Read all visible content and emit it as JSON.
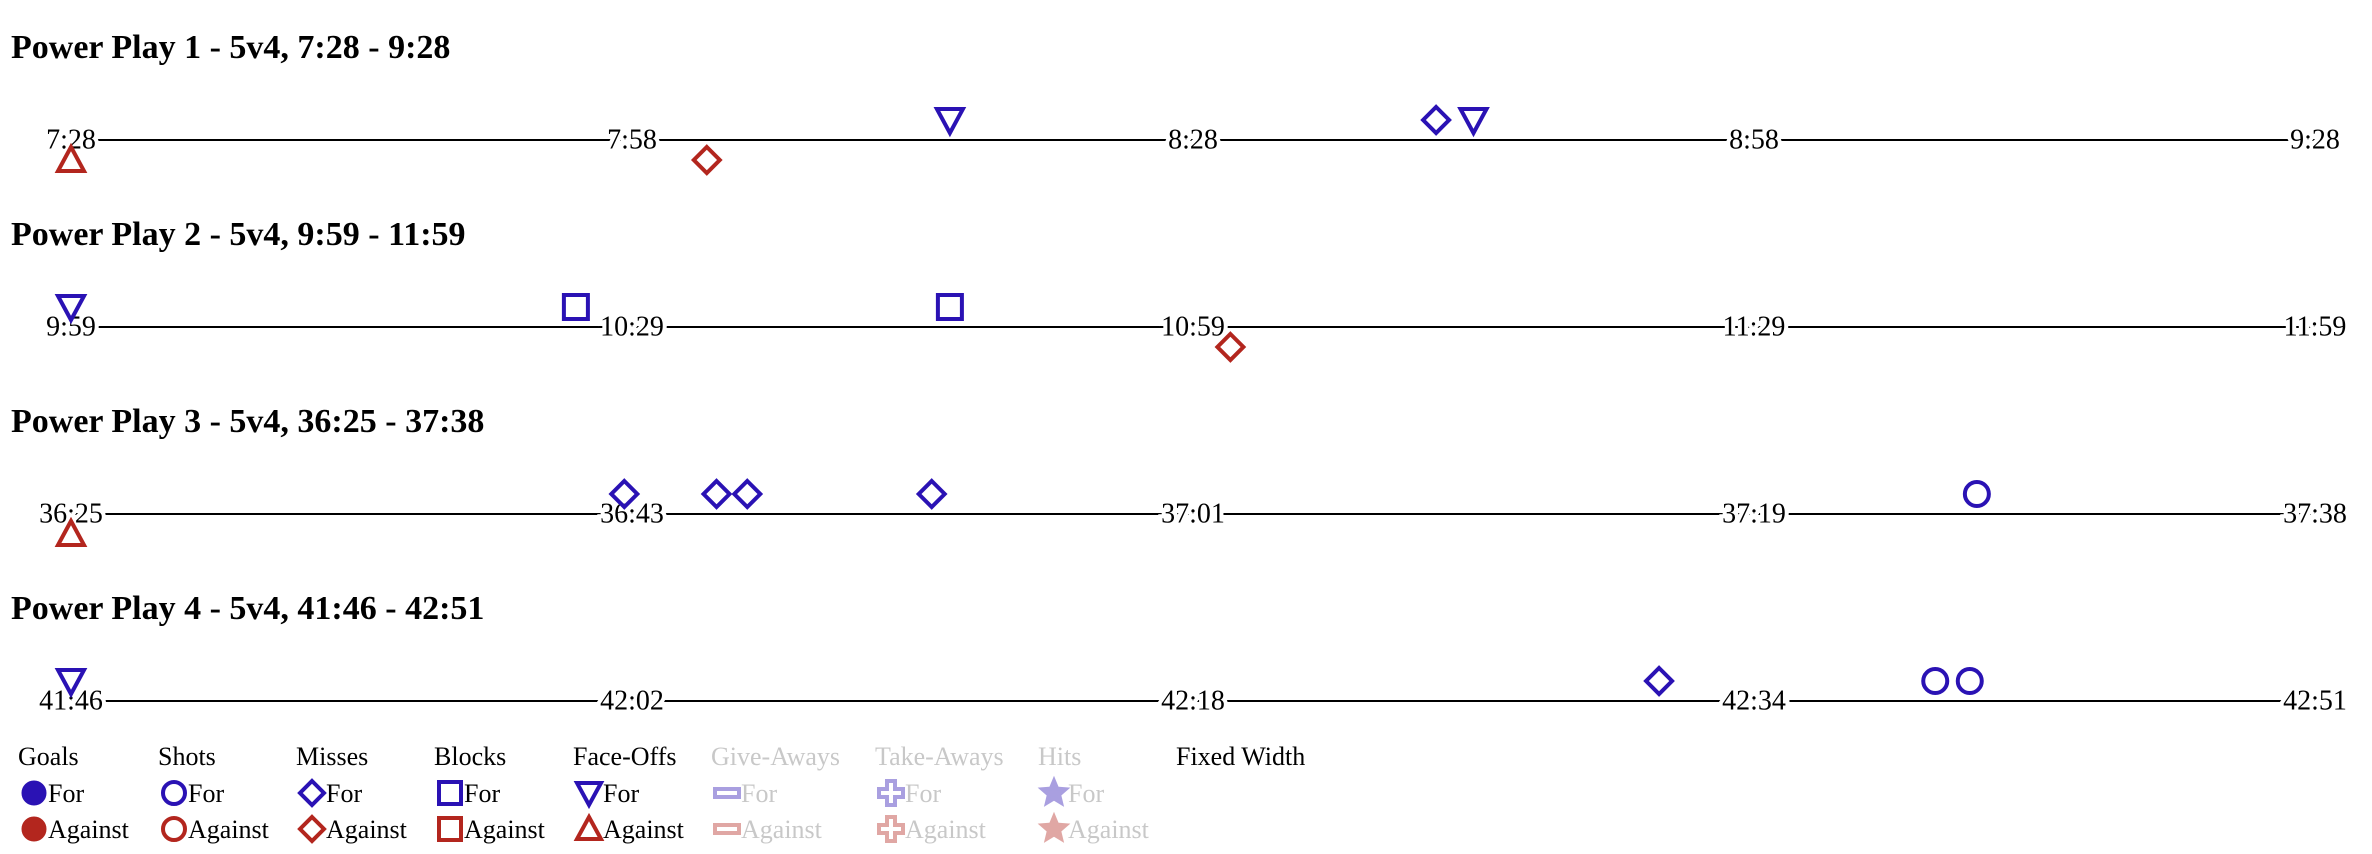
{
  "colors": {
    "for": "#2a12b4",
    "against": "#b3261e"
  },
  "chart_data": [
    {
      "type": "timeline",
      "title": "Power Play 1 - 5v4, 7:28 - 9:28",
      "xlim": [
        448,
        568
      ],
      "xticks": [
        {
          "value": 448,
          "label": "7:28"
        },
        {
          "value": 478,
          "label": "7:58"
        },
        {
          "value": 508,
          "label": "8:28"
        },
        {
          "value": 538,
          "label": "8:58"
        },
        {
          "value": 568,
          "label": "9:28"
        }
      ],
      "events": [
        {
          "x": 448,
          "shape": "triangle-up",
          "team": "against"
        },
        {
          "x": 482,
          "shape": "diamond",
          "team": "against"
        },
        {
          "x": 495,
          "shape": "triangle-down",
          "team": "for"
        },
        {
          "x": 521,
          "shape": "diamond",
          "team": "for"
        },
        {
          "x": 523,
          "shape": "triangle-down",
          "team": "for"
        }
      ]
    },
    {
      "type": "timeline",
      "title": "Power Play 2 - 5v4, 9:59 - 11:59",
      "xlim": [
        599,
        719
      ],
      "xticks": [
        {
          "value": 599,
          "label": "9:59"
        },
        {
          "value": 629,
          "label": "10:29"
        },
        {
          "value": 659,
          "label": "10:59"
        },
        {
          "value": 689,
          "label": "11:29"
        },
        {
          "value": 719,
          "label": "11:59"
        }
      ],
      "events": [
        {
          "x": 599,
          "shape": "triangle-down",
          "team": "for"
        },
        {
          "x": 626,
          "shape": "square",
          "team": "for"
        },
        {
          "x": 646,
          "shape": "square",
          "team": "for"
        },
        {
          "x": 661,
          "shape": "diamond",
          "team": "against"
        }
      ]
    },
    {
      "type": "timeline",
      "title": "Power Play 3 - 5v4, 36:25 - 37:38",
      "xlim": [
        2185,
        2258
      ],
      "xticks": [
        {
          "value": 2185,
          "label": "36:25"
        },
        {
          "value": 2203.25,
          "label": "36:43"
        },
        {
          "value": 2221.5,
          "label": "37:01"
        },
        {
          "value": 2239.75,
          "label": "37:19"
        },
        {
          "value": 2258,
          "label": "37:38"
        }
      ],
      "events": [
        {
          "x": 2185,
          "shape": "triangle-up",
          "team": "against"
        },
        {
          "x": 2203,
          "shape": "diamond",
          "team": "for"
        },
        {
          "x": 2206,
          "shape": "diamond",
          "team": "for"
        },
        {
          "x": 2207,
          "shape": "diamond",
          "team": "for"
        },
        {
          "x": 2213,
          "shape": "diamond",
          "team": "for"
        },
        {
          "x": 2247,
          "shape": "circle",
          "team": "for"
        }
      ]
    },
    {
      "type": "timeline",
      "title": "Power Play 4 - 5v4, 41:46 - 42:51",
      "xlim": [
        2506,
        2571
      ],
      "xticks": [
        {
          "value": 2506,
          "label": "41:46"
        },
        {
          "value": 2522.25,
          "label": "42:02"
        },
        {
          "value": 2538.5,
          "label": "42:18"
        },
        {
          "value": 2554.75,
          "label": "42:34"
        },
        {
          "value": 2571,
          "label": "42:51"
        }
      ],
      "events": [
        {
          "x": 2506,
          "shape": "triangle-down",
          "team": "for"
        },
        {
          "x": 2552,
          "shape": "diamond",
          "team": "for"
        },
        {
          "x": 2560,
          "shape": "circle",
          "team": "for"
        },
        {
          "x": 2561,
          "shape": "circle",
          "team": "for"
        }
      ]
    }
  ],
  "legend": {
    "groups": [
      {
        "name": "Goals",
        "for": "For",
        "against": "Against",
        "for_shape": "octagon-filled",
        "against_shape": "octagon-filled",
        "enabled": true
      },
      {
        "name": "Shots",
        "for": "For",
        "against": "Against",
        "for_shape": "circle",
        "against_shape": "circle",
        "enabled": true
      },
      {
        "name": "Misses",
        "for": "For",
        "against": "Against",
        "for_shape": "diamond",
        "against_shape": "diamond",
        "enabled": true
      },
      {
        "name": "Blocks",
        "for": "For",
        "against": "Against",
        "for_shape": "square",
        "against_shape": "square",
        "enabled": true
      },
      {
        "name": "Face-Offs",
        "for": "For",
        "against": "Against",
        "for_shape": "triangle-down",
        "against_shape": "triangle-up",
        "enabled": true
      },
      {
        "name": "Give-Aways",
        "for": "For",
        "against": "Against",
        "for_shape": "minus",
        "against_shape": "minus",
        "enabled": false
      },
      {
        "name": "Take-Aways",
        "for": "For",
        "against": "Against",
        "for_shape": "plus",
        "against_shape": "plus",
        "enabled": false
      },
      {
        "name": "Hits",
        "for": "For",
        "against": "Against",
        "for_shape": "star",
        "against_shape": "star",
        "enabled": false
      }
    ],
    "fixed_width": "Fixed Width"
  }
}
